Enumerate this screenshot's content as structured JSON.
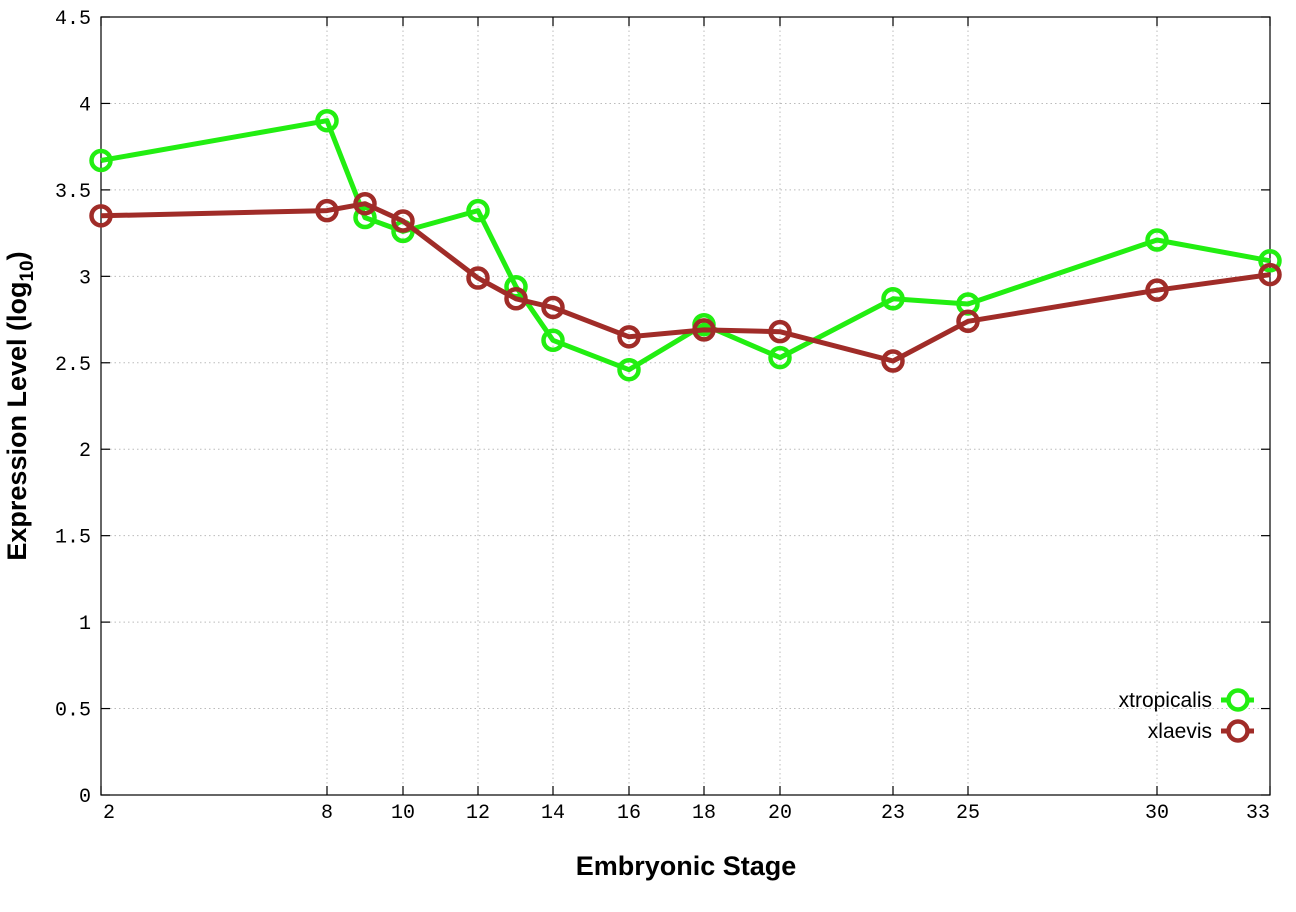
{
  "chart_data": {
    "type": "line",
    "title": "",
    "xlabel": "Embryonic Stage",
    "ylabel": {
      "prefix": "Expression Level (log",
      "subscript": "10",
      "suffix": ")"
    },
    "x_ticks": [
      2,
      8,
      10,
      12,
      14,
      16,
      18,
      20,
      23,
      25,
      30,
      33
    ],
    "x_tick_labels": [
      "2",
      "8",
      "10",
      "12",
      "14",
      "16",
      "18",
      "20",
      "23",
      "25",
      "30",
      "33"
    ],
    "y_ticks": [
      0,
      0.5,
      1,
      1.5,
      2,
      2.5,
      3,
      3.5,
      4,
      4.5
    ],
    "y_tick_labels": [
      "0",
      "0.5",
      "1",
      "1.5",
      "2",
      "2.5",
      "3",
      "3.5",
      "4",
      "4.5"
    ],
    "xlim": [
      2,
      33
    ],
    "ylim": [
      0,
      4.5
    ],
    "grid": true,
    "legend_position": "bottom-right",
    "series": [
      {
        "name": "xtropicalis",
        "color": "#22ee11",
        "points": [
          {
            "x": 2,
            "y": 3.67
          },
          {
            "x": 8,
            "y": 3.9
          },
          {
            "x": 9,
            "y": 3.34
          },
          {
            "x": 10,
            "y": 3.26
          },
          {
            "x": 12,
            "y": 3.38
          },
          {
            "x": 13,
            "y": 2.94
          },
          {
            "x": 14,
            "y": 2.63
          },
          {
            "x": 16,
            "y": 2.46
          },
          {
            "x": 18,
            "y": 2.72
          },
          {
            "x": 20,
            "y": 2.53
          },
          {
            "x": 23,
            "y": 2.87
          },
          {
            "x": 25,
            "y": 2.84
          },
          {
            "x": 30,
            "y": 3.21
          },
          {
            "x": 33,
            "y": 3.09
          }
        ]
      },
      {
        "name": "xlaevis",
        "color": "#a02c28",
        "points": [
          {
            "x": 2,
            "y": 3.35
          },
          {
            "x": 8,
            "y": 3.38
          },
          {
            "x": 9,
            "y": 3.42
          },
          {
            "x": 10,
            "y": 3.32
          },
          {
            "x": 12,
            "y": 2.99
          },
          {
            "x": 13,
            "y": 2.87
          },
          {
            "x": 14,
            "y": 2.82
          },
          {
            "x": 16,
            "y": 2.65
          },
          {
            "x": 18,
            "y": 2.69
          },
          {
            "x": 20,
            "y": 2.68
          },
          {
            "x": 23,
            "y": 2.51
          },
          {
            "x": 25,
            "y": 2.74
          },
          {
            "x": 30,
            "y": 2.92
          },
          {
            "x": 33,
            "y": 3.01
          }
        ]
      }
    ]
  }
}
